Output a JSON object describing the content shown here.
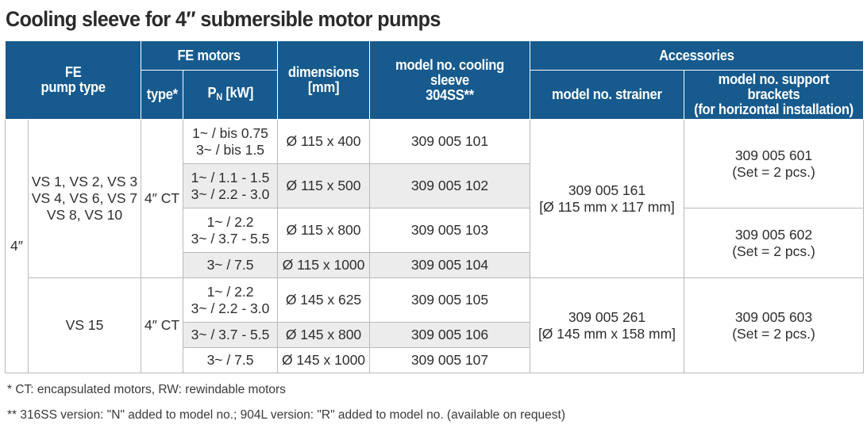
{
  "title": "Cooling sleeve for 4″ submersible motor pumps",
  "header": {
    "pump_type_line1": "FE",
    "pump_type_line2": "pump type",
    "fe_motors": "FE motors",
    "type": "type*",
    "pn_p": "P",
    "pn_sub": "N",
    "pn_unit": " [kW]",
    "dim_line1": "dimensions",
    "dim_line2": "[mm]",
    "sleeve_line1": "model no. cooling sleeve",
    "sleeve_line2": "304SS**",
    "accessories": "Accessories",
    "strainer": "model no. strainer",
    "brackets_line1": "model no. support brackets",
    "brackets_line2": "(for horizontal installation)"
  },
  "rows": {
    "size": "4″",
    "group1": {
      "pumps_line1": "VS 1, VS 2, VS 3",
      "pumps_line2": "VS 4, VS 6, VS 7",
      "pumps_line3": "VS 8, VS 10",
      "type": "4″ CT",
      "strainer_line1": "309 005 161",
      "strainer_line2": "[Ø 115 mm x 117 mm]",
      "bracket_a_line1": "309 005 601",
      "bracket_a_line2": "(Set = 2 pcs.)",
      "bracket_b_line1": "309 005 602",
      "bracket_b_line2": "(Set = 2 pcs.)",
      "r1_pn1": "1~ / bis 0.75",
      "r1_pn2": "3~ / bis 1.5",
      "r1_dim": "Ø 115 x 400",
      "r1_model": "309 005 101",
      "r2_pn1": "1~ / 1.1 - 1.5",
      "r2_pn2": "3~ / 2.2 - 3.0",
      "r2_dim": "Ø 115 x 500",
      "r2_model": "309 005 102",
      "r3_pn1": "1~ / 2.2",
      "r3_pn2": "3~ / 3.7 - 5.5",
      "r3_dim": "Ø 115 x 800",
      "r3_model": "309 005 103",
      "r4_pn1": "3~ / 7.5",
      "r4_dim": "Ø 115 x 1000",
      "r4_model": "309 005 104"
    },
    "group2": {
      "pumps_line1": "VS 15",
      "type": "4″ CT",
      "strainer_line1": "309 005 261",
      "strainer_line2": "[Ø 145 mm x 158 mm]",
      "bracket_line1": "309 005 603",
      "bracket_line2": "(Set = 2 pcs.)",
      "r1_pn1": "1~ / 2.2",
      "r1_pn2": "3~ / 2.2 - 3.0",
      "r1_dim": "Ø 145 x 625",
      "r1_model": "309 005 105",
      "r2_pn1": "3~ / 3.7 - 5.5",
      "r2_dim": "Ø 145 x 800",
      "r2_model": "309 005 106",
      "r3_pn1": "3~ / 7.5",
      "r3_dim": "Ø 145 x 1000",
      "r3_model": "309 005 107"
    }
  },
  "footnotes": {
    "note1": "* CT: encapsulated motors, RW: rewindable motors",
    "note2": "** 316SS version: \"N\" added to model no.; 904L version: \"R\" added to model no. (available on request)"
  },
  "colors": {
    "header_bg": "#165a8e",
    "stripe": "#ececec",
    "border": "#b9b9b9"
  }
}
